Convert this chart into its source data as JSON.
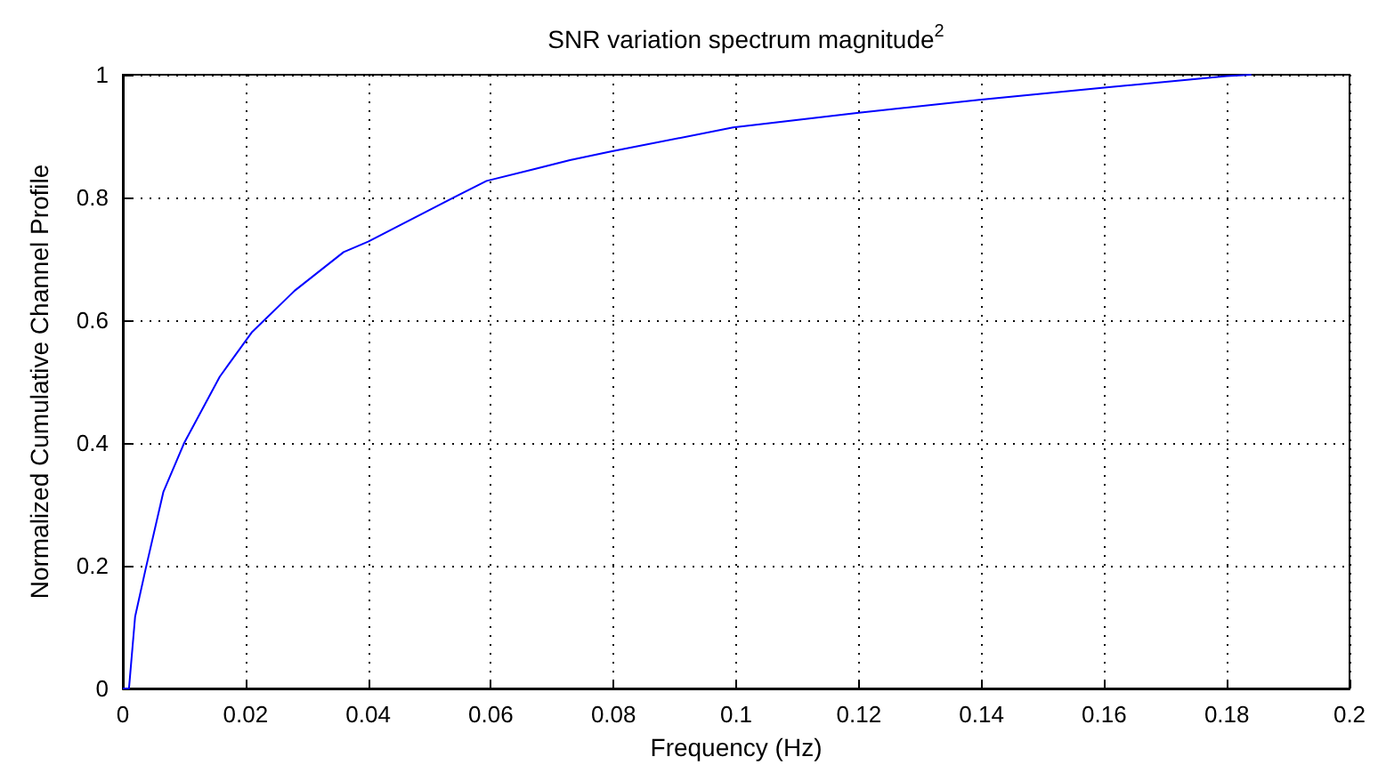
{
  "chart_data": {
    "type": "line",
    "title": "SNR variation spectrum magnitude$^{2}$",
    "xlabel": "Frequency (Hz)",
    "ylabel": "Normalized Cumulative Channel Profile",
    "x": [
      0,
      0.001,
      0.002,
      0.0037,
      0.0066,
      0.01,
      0.0158,
      0.021,
      0.028,
      0.036,
      0.04,
      0.0516,
      0.0593,
      0.067,
      0.0729,
      0.0796,
      0.0995,
      0.12,
      0.1396,
      0.16,
      0.18,
      0.184
    ],
    "series": [
      {
        "color": "#0000ff",
        "values": [
          0,
          0,
          0.117,
          0.194,
          0.32,
          0.4,
          0.508,
          0.58,
          0.648,
          0.711,
          0.728,
          0.788,
          0.827,
          0.846,
          0.861,
          0.875,
          0.914,
          0.938,
          0.959,
          0.979,
          0.998,
          1
        ]
      }
    ],
    "xlim": [
      0,
      0.2
    ],
    "xticks": [
      0,
      0.02,
      0.04,
      0.06,
      0.08,
      0.1,
      0.12,
      0.14,
      0.16,
      0.18,
      0.2
    ],
    "ylim": [
      0,
      1
    ],
    "yticks": [
      0,
      0.2,
      0.4,
      0.6,
      0.8,
      1
    ],
    "grid": true,
    "marker": "none",
    "line_style": "solid"
  }
}
